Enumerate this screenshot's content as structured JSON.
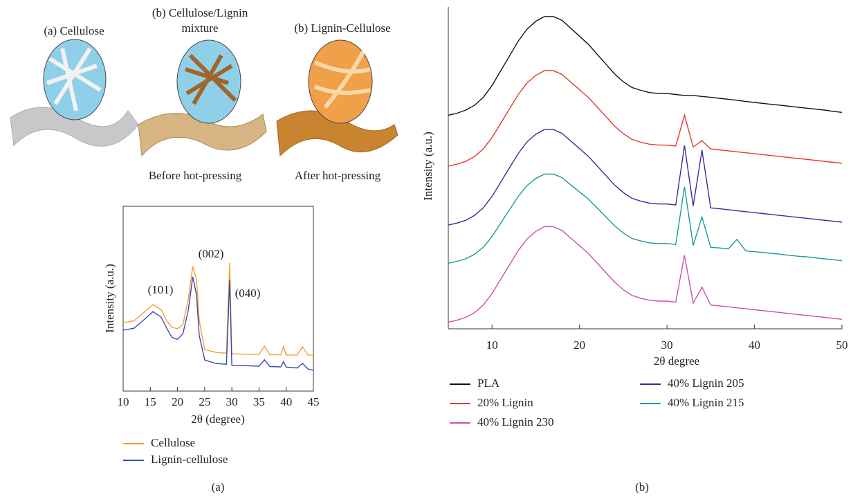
{
  "illustration": {
    "labels": [
      "(a) Cellulose",
      "(b) Cellulose/Lignin",
      "mixture",
      "(b) Lignin-Cellulose"
    ],
    "captions": [
      "Before hot-pressing",
      "After hot-pressing"
    ]
  },
  "panel_labels": [
    "(a)",
    "(b)"
  ],
  "chart_data": [
    {
      "type": "line",
      "x_label": "2θ (degree)",
      "y_label": "Intensity (a.u.)",
      "annotations": [
        "(101)",
        "(002)",
        "(040)"
      ],
      "x": [
        10,
        12,
        14,
        15.5,
        17,
        18,
        19,
        20,
        21,
        22,
        22.8,
        23.5,
        24,
        25,
        27,
        29,
        29.6,
        30,
        32,
        35,
        36,
        37,
        39,
        39.5,
        40,
        42,
        43,
        44,
        45
      ],
      "series": [
        {
          "name": "Cellulose",
          "color": "#f0a030",
          "values": [
            37,
            38,
            43,
            46.8,
            44,
            38,
            34.5,
            33.7,
            36,
            50,
            67.4,
            60,
            38,
            22.5,
            21,
            20.5,
            69.3,
            20.2,
            20,
            19.8,
            24.3,
            19.7,
            19.6,
            24,
            19.5,
            19.5,
            24,
            19.5,
            19.5
          ]
        },
        {
          "name": "Lignin-cellulose",
          "color": "#3a4ab0",
          "values": [
            33,
            34,
            39,
            43,
            40,
            34,
            29,
            28,
            31,
            44,
            61.8,
            52,
            30,
            16.9,
            15,
            14.5,
            60,
            14,
            13.8,
            13.5,
            16.9,
            13.3,
            13.1,
            16,
            13,
            12.5,
            15,
            12,
            11.2
          ]
        }
      ],
      "xlim": [
        10,
        45
      ],
      "xticks": [
        10,
        15,
        20,
        25,
        30,
        35,
        40,
        45
      ],
      "ylim": [
        0,
        100
      ]
    },
    {
      "type": "line",
      "x_label": "2θ degree",
      "y_label": "Intensity (a.u.)",
      "x": [
        5,
        6,
        7,
        8,
        9,
        10,
        11,
        12,
        13,
        14,
        15,
        16,
        17,
        18,
        19,
        20,
        21,
        22,
        23,
        24,
        25,
        26,
        27,
        28,
        29,
        30,
        31,
        32,
        33,
        34,
        35,
        36,
        37,
        38,
        39,
        40,
        41,
        42,
        43,
        44,
        45,
        46,
        47,
        48,
        49,
        50
      ],
      "series": [
        {
          "name": "PLA",
          "color": "#111111",
          "values": [
            66,
            66.6,
            67.6,
            69.1,
            71.6,
            75.3,
            80,
            84.6,
            89.3,
            93,
            95.5,
            97,
            97,
            95.8,
            93.3,
            90.8,
            88.3,
            85.2,
            82.1,
            79,
            76.5,
            74.7,
            73.8,
            73.1,
            72.8,
            72.8,
            72.5,
            72.2,
            72.2,
            71.9,
            71.6,
            71.3,
            71,
            70.7,
            70.3,
            70,
            69.7,
            69.4,
            69.1,
            68.8,
            68.5,
            68.2,
            67.9,
            67.6,
            67.2,
            66.9
          ]
        },
        {
          "name": "20% Lignin",
          "color": "#e8352a",
          "values": [
            50,
            50.6,
            51.5,
            53,
            55.4,
            59,
            63.5,
            68,
            72.5,
            76.1,
            78.5,
            80,
            80,
            78.8,
            76.4,
            74,
            71.6,
            68.6,
            65.6,
            62.6,
            60.2,
            58.4,
            57.5,
            56.9,
            56.6,
            56.6,
            56.3,
            66,
            56,
            58,
            55.4,
            55.1,
            54.8,
            54.5,
            54.2,
            53.9,
            53.6,
            53.3,
            53,
            52.7,
            52.4,
            52.1,
            51.8,
            51.5,
            51.2,
            50.9
          ]
        },
        {
          "name": "40% Lignin 205",
          "color": "#3a2a9a",
          "values": [
            31.5,
            32.1,
            33,
            34.5,
            36.9,
            40.5,
            45,
            49.5,
            54,
            57.6,
            60,
            61.5,
            61.5,
            60.3,
            57.9,
            55.5,
            53.1,
            50.1,
            47.1,
            44.1,
            41.7,
            39.9,
            39,
            38.4,
            38.1,
            38.1,
            37.8,
            56.5,
            37.5,
            55,
            36.9,
            36.6,
            36.3,
            36,
            35.7,
            35.4,
            35.1,
            34.8,
            34.5,
            34.2,
            33.9,
            33.6,
            33.3,
            33,
            32.7,
            32.4
          ]
        },
        {
          "name": "40% Lignin 215",
          "color": "#1a9a96",
          "values": [
            19.5,
            20.1,
            20.9,
            22.3,
            24.5,
            27.9,
            32.1,
            36.3,
            40.5,
            43.9,
            46.1,
            47.5,
            47.5,
            46.4,
            44.1,
            41.9,
            39.7,
            36.9,
            34.1,
            31.3,
            29,
            27.3,
            26.5,
            25.9,
            25.7,
            25.7,
            25.4,
            43.5,
            25.1,
            34,
            24.5,
            24.3,
            24,
            27,
            23.4,
            23.1,
            22.9,
            22.6,
            22.3,
            22,
            21.7,
            21.5,
            21.2,
            20.9,
            20.6,
            20.3
          ]
        },
        {
          "name": "40% Lignin 230",
          "color": "#cc4faa",
          "values": [
            1,
            1.6,
            2.5,
            4,
            6.4,
            10,
            14.5,
            19,
            23.5,
            27.1,
            29.5,
            31,
            31,
            29.8,
            27.4,
            25,
            22.6,
            19.6,
            16.6,
            13.6,
            11.2,
            9.4,
            8.5,
            7.9,
            7.6,
            7.6,
            7.3,
            22,
            7,
            12,
            6.4,
            6.1,
            5.8,
            5.5,
            5.2,
            4.9,
            4.6,
            4.3,
            4,
            3.7,
            3.4,
            3.1,
            2.8,
            2.5,
            2.2,
            1.9
          ]
        }
      ],
      "xlim": [
        5,
        50
      ],
      "xticks": [
        10,
        20,
        30,
        40,
        50
      ],
      "ylim": [
        0,
        100
      ]
    }
  ]
}
